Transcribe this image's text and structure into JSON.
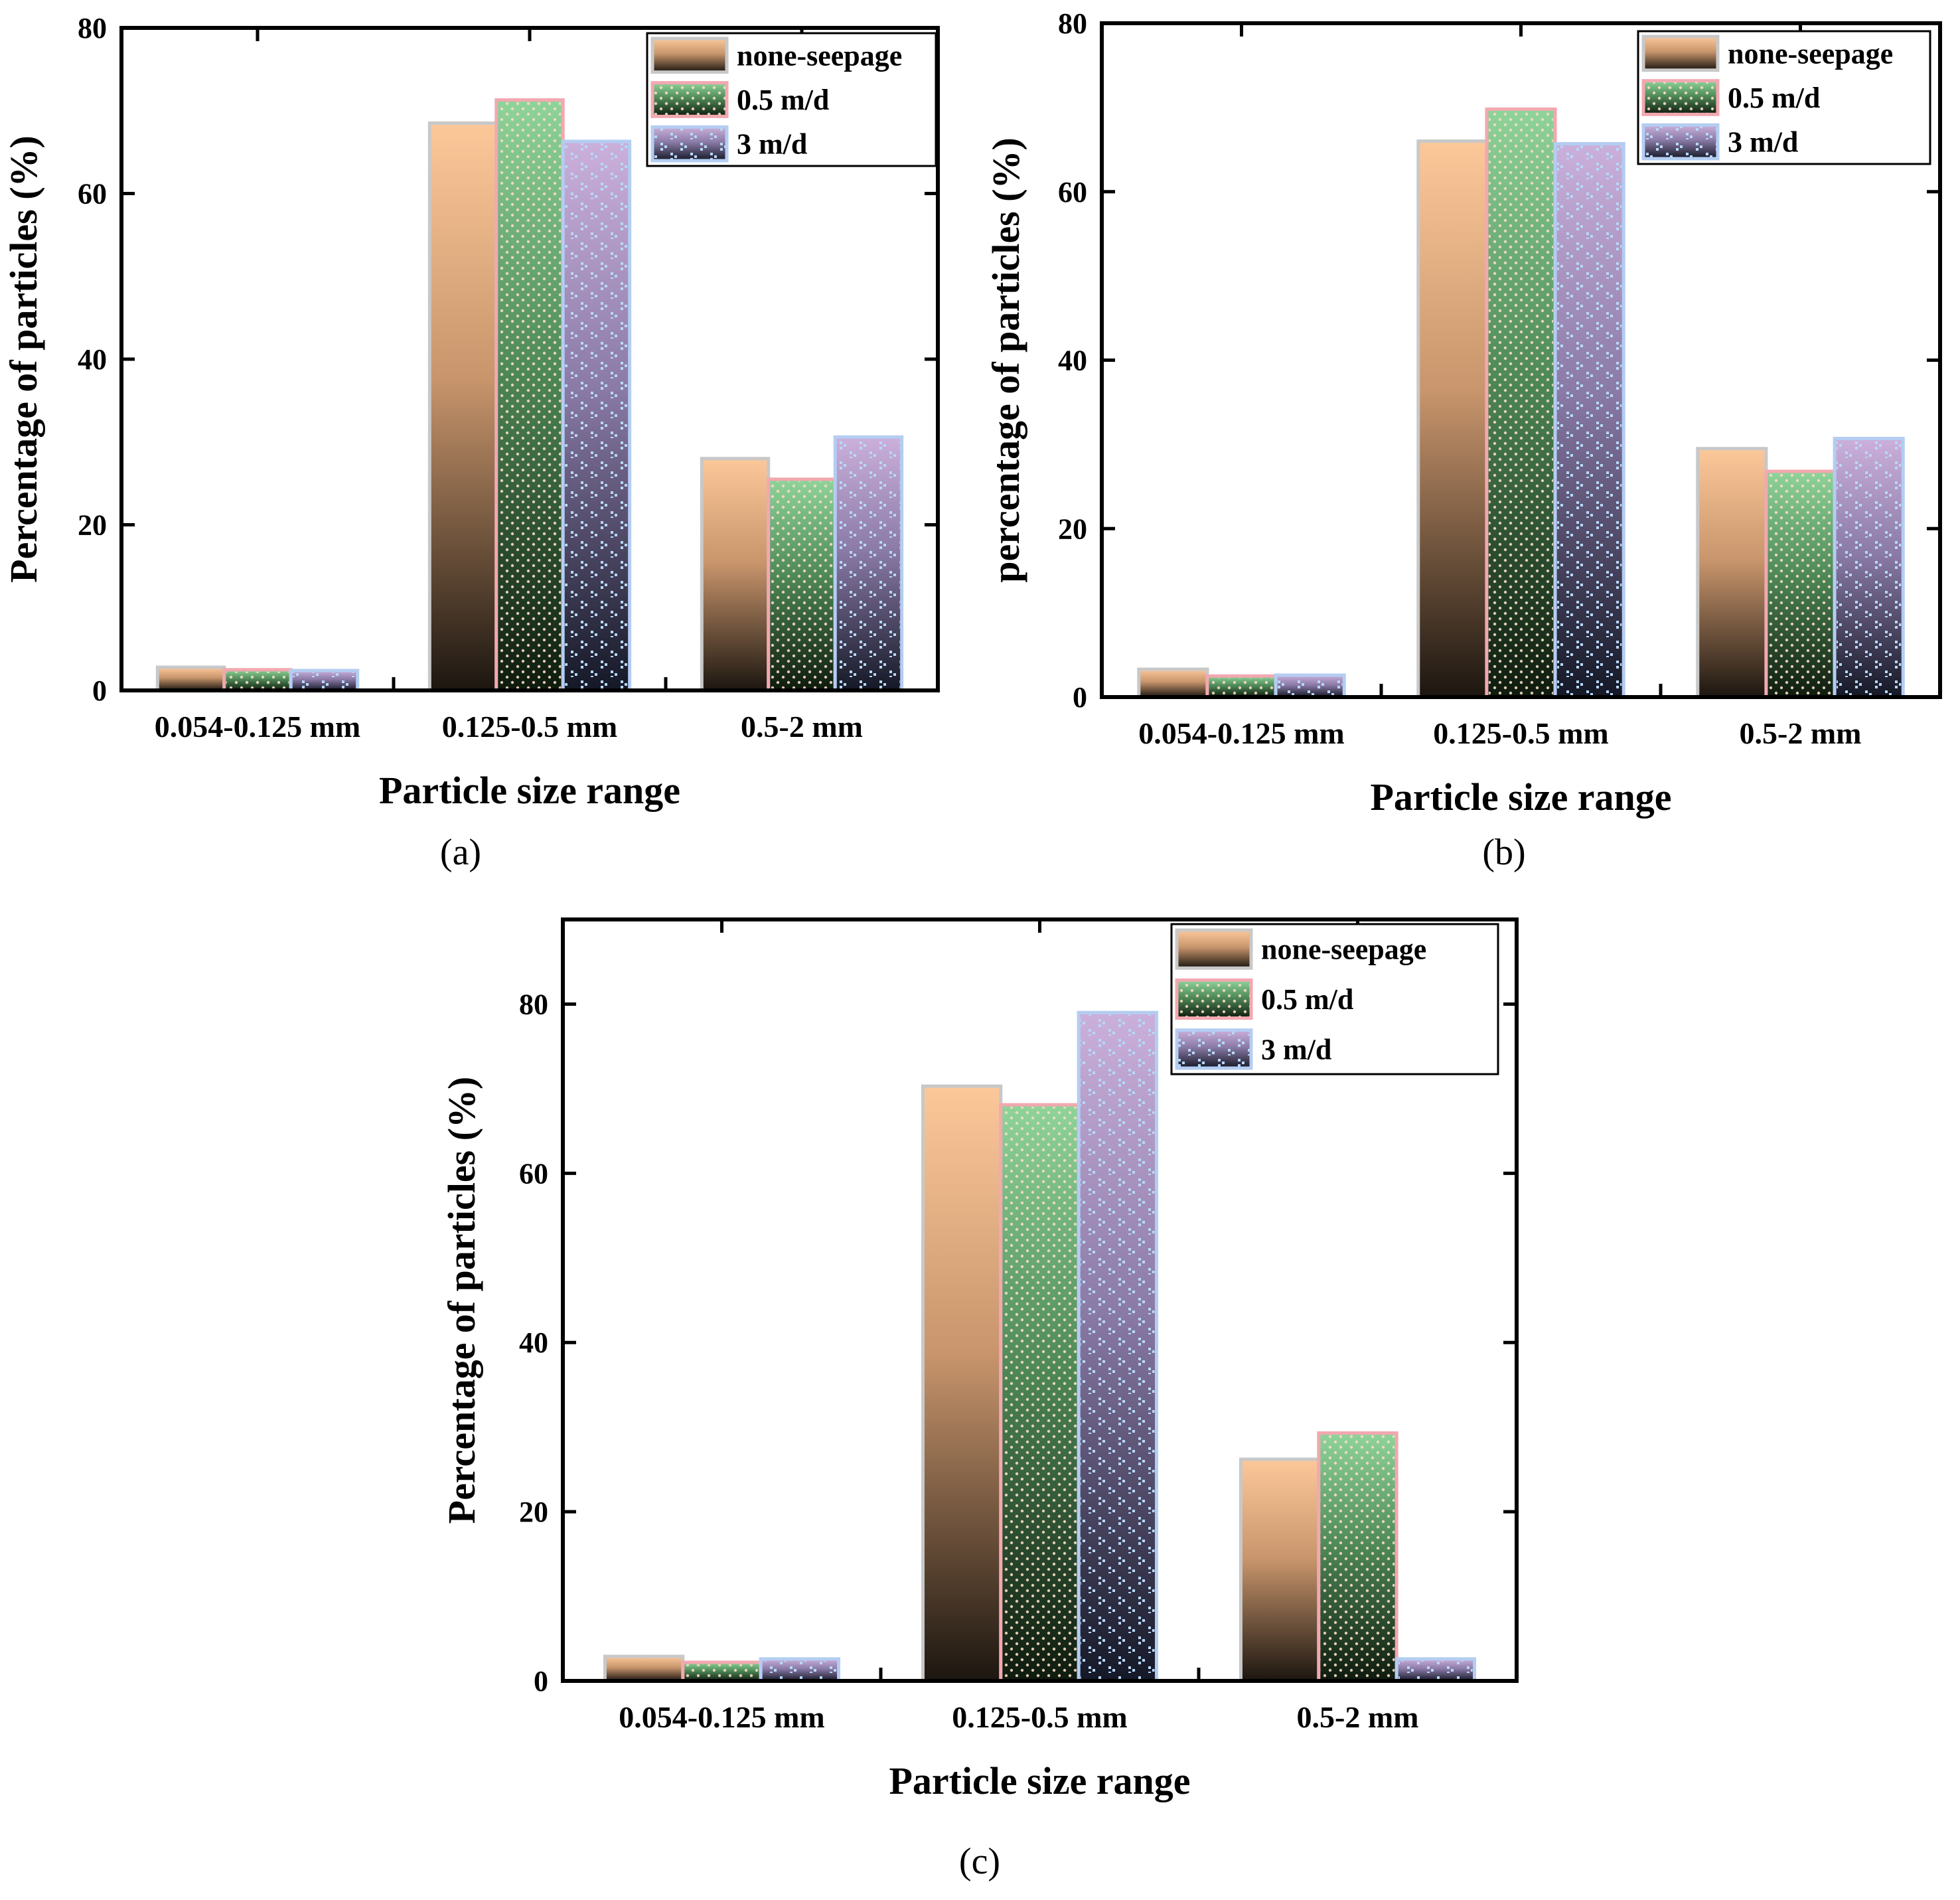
{
  "colors": {
    "none_seepage_top": "#fcc89a",
    "none_seepage_mid": "#c8956c",
    "none_seepage_bottom": "#1c1610",
    "none_seepage_border": "#c8c8c8",
    "m05_top": "#8fd49a",
    "m05_mid": "#4f8a58",
    "m05_bottom": "#0e1a0e",
    "m05_border": "#f2a8b0",
    "m3_top": "#cbb0db",
    "m3_mid": "#8a7aa6",
    "m3_bottom": "#141826",
    "m3_border": "#b4cdf2",
    "dots_light": "#f6ddc4",
    "dots_blue": "#b8d8f8"
  },
  "chart_data": [
    {
      "panel": "(a)",
      "type": "bar",
      "categories": [
        "0.054-0.125 mm",
        "0.125-0.5 mm",
        "0.5-2 mm"
      ],
      "series": [
        {
          "name": "none-seepage",
          "key": "none",
          "values": [
            2.8,
            68.5,
            28.0
          ]
        },
        {
          "name": "0.5 m/d",
          "key": "m05",
          "values": [
            2.5,
            71.3,
            25.5
          ]
        },
        {
          "name": "3 m/d",
          "key": "m3",
          "values": [
            2.4,
            66.3,
            30.6
          ]
        }
      ],
      "xlabel": "Particle size range",
      "ylabel": "Percentage of particles (%)",
      "ylim": [
        0,
        80
      ],
      "yticks": [
        0,
        20,
        40,
        60,
        80
      ],
      "legend": "top-right"
    },
    {
      "panel": "(b)",
      "type": "bar",
      "categories": [
        "0.054-0.125 mm",
        "0.125-0.5 mm",
        "0.5-2 mm"
      ],
      "series": [
        {
          "name": "none-seepage",
          "key": "none",
          "values": [
            3.3,
            66.0,
            29.5
          ]
        },
        {
          "name": "0.5 m/d",
          "key": "m05",
          "values": [
            2.5,
            69.8,
            26.8
          ]
        },
        {
          "name": "3 m/d",
          "key": "m3",
          "values": [
            2.6,
            65.7,
            30.7
          ]
        }
      ],
      "xlabel": "Particle size range",
      "ylabel": "percentage of particles (%)",
      "ylim": [
        0,
        80
      ],
      "yticks": [
        0,
        20,
        40,
        60,
        80
      ],
      "legend": "top-right"
    },
    {
      "panel": "(c)",
      "type": "bar",
      "categories": [
        "0.054-0.125 mm",
        "0.125-0.5 mm",
        "0.5-2 mm"
      ],
      "series": [
        {
          "name": "none-seepage",
          "key": "none",
          "values": [
            2.9,
            70.3,
            26.2
          ]
        },
        {
          "name": "0.5 m/d",
          "key": "m05",
          "values": [
            2.2,
            68.1,
            29.3
          ]
        },
        {
          "name": "3 m/d",
          "key": "m3",
          "values": [
            2.6,
            79.0,
            2.6
          ]
        }
      ],
      "xlabel": "Particle size range",
      "ylabel": "Percentage of particles (%)",
      "ylim": [
        0,
        90
      ],
      "yticks": [
        0,
        20,
        40,
        60,
        80
      ],
      "legend": "top-right"
    }
  ]
}
